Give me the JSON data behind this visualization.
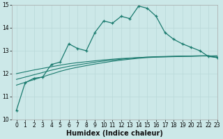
{
  "xlabel": "Humidex (Indice chaleur)",
  "x": [
    0,
    1,
    2,
    3,
    4,
    5,
    6,
    7,
    8,
    9,
    10,
    11,
    12,
    13,
    14,
    15,
    16,
    17,
    18,
    19,
    20,
    21,
    22,
    23
  ],
  "line1": [
    10.4,
    11.6,
    11.8,
    11.85,
    12.4,
    12.5,
    13.3,
    13.1,
    13.0,
    13.8,
    14.3,
    14.2,
    14.5,
    14.4,
    14.95,
    14.85,
    14.5,
    13.8,
    13.5,
    13.3,
    13.15,
    13.0,
    12.75,
    12.7
  ],
  "line2_x": [
    0,
    1,
    2,
    3,
    4,
    5,
    6,
    7,
    8,
    9,
    10,
    11,
    12,
    13,
    14,
    15,
    16,
    17,
    18,
    19,
    20,
    21,
    22,
    23
  ],
  "line2_y": [
    11.5,
    11.62,
    11.74,
    11.86,
    11.98,
    12.1,
    12.2,
    12.28,
    12.35,
    12.42,
    12.48,
    12.54,
    12.59,
    12.63,
    12.67,
    12.7,
    12.72,
    12.73,
    12.74,
    12.75,
    12.76,
    12.77,
    12.78,
    12.7
  ],
  "line3_x": [
    0,
    1,
    2,
    3,
    4,
    5,
    6,
    7,
    8,
    9,
    10,
    11,
    12,
    13,
    14,
    15,
    16,
    17,
    18,
    19,
    20,
    21,
    22,
    23
  ],
  "line3_y": [
    11.75,
    11.85,
    11.95,
    12.05,
    12.15,
    12.24,
    12.32,
    12.38,
    12.44,
    12.5,
    12.55,
    12.59,
    12.63,
    12.67,
    12.7,
    12.72,
    12.74,
    12.75,
    12.76,
    12.77,
    12.77,
    12.78,
    12.78,
    12.75
  ],
  "line4_x": [
    0,
    1,
    2,
    3,
    4,
    5,
    6,
    7,
    8,
    9,
    10,
    11,
    12,
    13,
    14,
    15,
    16,
    17,
    18,
    19,
    20,
    21,
    22,
    23
  ],
  "line4_y": [
    12.0,
    12.08,
    12.16,
    12.23,
    12.3,
    12.37,
    12.43,
    12.48,
    12.52,
    12.56,
    12.6,
    12.63,
    12.66,
    12.68,
    12.7,
    12.72,
    12.73,
    12.74,
    12.75,
    12.76,
    12.76,
    12.77,
    12.77,
    12.78
  ],
  "color": "#1a7a6e",
  "bg_color": "#cce8e8",
  "grid_major_color": "#b8d8d8",
  "grid_minor_color": "#d4ecec",
  "ylim": [
    10,
    15
  ],
  "xlim": [
    -0.5,
    23
  ],
  "yticks": [
    10,
    11,
    12,
    13,
    14,
    15
  ],
  "xticks": [
    0,
    1,
    2,
    3,
    4,
    5,
    6,
    7,
    8,
    9,
    10,
    11,
    12,
    13,
    14,
    15,
    16,
    17,
    18,
    19,
    20,
    21,
    22,
    23
  ],
  "tick_fontsize": 5.5,
  "xlabel_fontsize": 7
}
